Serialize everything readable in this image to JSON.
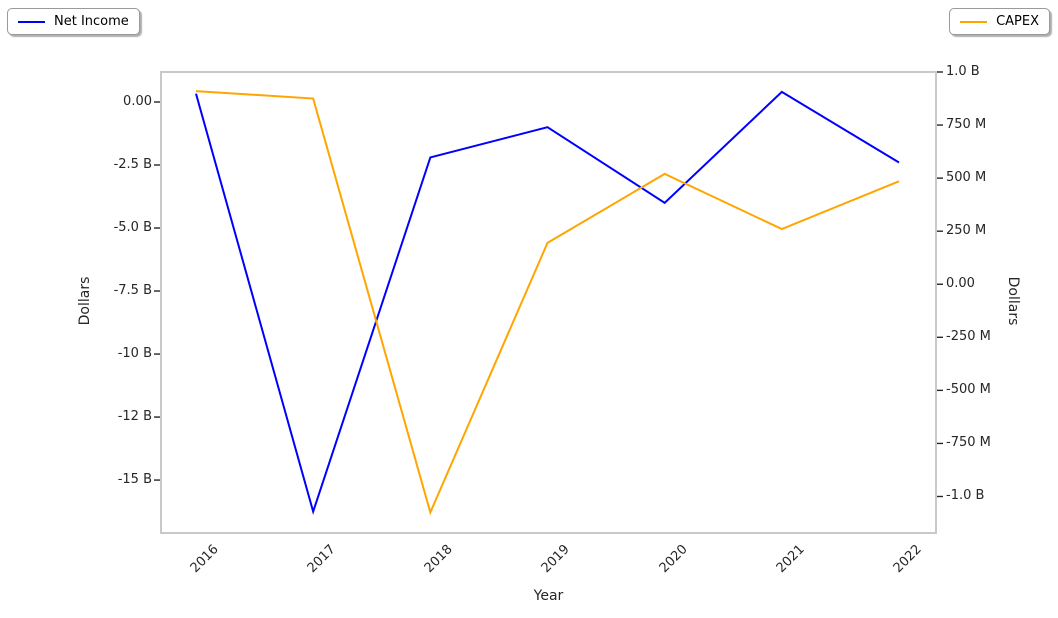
{
  "chart_data": {
    "type": "line",
    "title": "",
    "xlabel": "Year",
    "x": [
      "2016",
      "2017",
      "2018",
      "2019",
      "2020",
      "2021",
      "2022"
    ],
    "series": [
      {
        "name": "Net Income",
        "color": "#0000ff",
        "axis": "left",
        "values": [
          330000000,
          -16250000000,
          -2200000000,
          -1000000000,
          -4000000000,
          400000000,
          -2400000000
        ]
      },
      {
        "name": "CAPEX",
        "color": "#ffa500",
        "axis": "right",
        "values": [
          910000000,
          875000000,
          -1075000000,
          195000000,
          520000000,
          260000000,
          485000000
        ]
      }
    ],
    "left_axis": {
      "label": "Dollars",
      "range": [
        -17100000000,
        1190000000
      ],
      "ticks": [
        {
          "value": 0,
          "label": "0.00"
        },
        {
          "value": -2500000000,
          "label": "-2.5 B"
        },
        {
          "value": -5000000000,
          "label": "-5.0 B"
        },
        {
          "value": -7500000000,
          "label": "-7.5 B"
        },
        {
          "value": -10000000000,
          "label": "-10 B"
        },
        {
          "value": -12500000000,
          "label": "-12 B"
        },
        {
          "value": -15000000000,
          "label": "-15 B"
        }
      ]
    },
    "right_axis": {
      "label": "Dollars",
      "range": [
        -1172000000,
        1000000000
      ],
      "ticks": [
        {
          "value": 1000000000,
          "label": "1.0 B"
        },
        {
          "value": 750000000,
          "label": "750 M"
        },
        {
          "value": 500000000,
          "label": "500 M"
        },
        {
          "value": 250000000,
          "label": "250 M"
        },
        {
          "value": 0,
          "label": "0.00"
        },
        {
          "value": -250000000,
          "label": "-250 M"
        },
        {
          "value": -500000000,
          "label": "-500 M"
        },
        {
          "value": -750000000,
          "label": "-750 M"
        },
        {
          "value": -1000000000,
          "label": "-1.0 B"
        }
      ]
    },
    "grid": false,
    "legend_position": "outside-top-left and outside-top-right"
  },
  "style_colors": {
    "frame": "#c9c9c9",
    "tick_text": "#262626",
    "tick_mark": "#262626"
  }
}
